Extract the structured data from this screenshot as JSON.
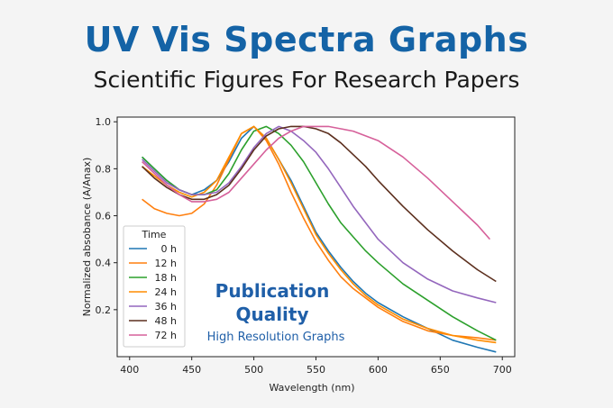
{
  "header": {
    "title": "UV Vis Spectra Graphs",
    "subtitle": "Scientific Figures For Research Papers"
  },
  "overlay": {
    "line1": "Publication",
    "line2": "Quality",
    "line3": "High Resolution Graphs"
  },
  "chart_data": {
    "type": "line",
    "xlabel": "Wavelength (nm)",
    "ylabel": "Normalized absobance (A/Anax)",
    "xlim": [
      400,
      700
    ],
    "ylim": [
      0.0,
      1.0
    ],
    "xticks": [
      400,
      450,
      500,
      550,
      600,
      650,
      700
    ],
    "yticks": [
      0.2,
      0.4,
      0.6,
      0.8,
      1.0
    ],
    "ytick_labels": [
      "0.2",
      "0.4",
      "0.6",
      "0.8",
      "1.0"
    ],
    "grid": false,
    "legend": {
      "title": "Time",
      "placement": "lower-left"
    },
    "series": [
      {
        "name": "0 h",
        "color": "#1f77b4",
        "x": [
          410,
          420,
          430,
          440,
          450,
          460,
          470,
          480,
          490,
          500,
          510,
          520,
          530,
          540,
          550,
          560,
          570,
          580,
          590,
          600,
          620,
          640,
          660,
          680,
          695
        ],
        "y": [
          0.85,
          0.8,
          0.75,
          0.71,
          0.69,
          0.71,
          0.75,
          0.83,
          0.93,
          0.98,
          0.93,
          0.84,
          0.75,
          0.64,
          0.53,
          0.45,
          0.38,
          0.32,
          0.27,
          0.23,
          0.17,
          0.12,
          0.07,
          0.04,
          0.02
        ]
      },
      {
        "name": "12 h",
        "color": "#ff7f0e",
        "x": [
          410,
          420,
          430,
          440,
          450,
          460,
          470,
          480,
          490,
          500,
          510,
          520,
          530,
          540,
          550,
          560,
          570,
          580,
          590,
          600,
          620,
          640,
          660,
          680,
          695
        ],
        "y": [
          0.67,
          0.63,
          0.61,
          0.6,
          0.61,
          0.65,
          0.73,
          0.84,
          0.95,
          0.98,
          0.92,
          0.82,
          0.7,
          0.59,
          0.49,
          0.41,
          0.34,
          0.29,
          0.25,
          0.21,
          0.15,
          0.11,
          0.09,
          0.08,
          0.07
        ]
      },
      {
        "name": "18 h",
        "color": "#2ca02c",
        "x": [
          410,
          420,
          430,
          440,
          450,
          460,
          470,
          480,
          490,
          500,
          510,
          520,
          530,
          540,
          550,
          560,
          570,
          580,
          590,
          600,
          620,
          640,
          660,
          680,
          695
        ],
        "y": [
          0.85,
          0.8,
          0.75,
          0.71,
          0.69,
          0.69,
          0.71,
          0.78,
          0.88,
          0.96,
          0.98,
          0.95,
          0.9,
          0.83,
          0.74,
          0.65,
          0.57,
          0.51,
          0.45,
          0.4,
          0.31,
          0.24,
          0.17,
          0.11,
          0.07
        ]
      },
      {
        "name": "24 h",
        "color": "#ff8c00",
        "x": [
          410,
          420,
          430,
          440,
          450,
          460,
          470,
          480,
          490,
          500,
          510,
          520,
          530,
          540,
          550,
          560,
          570,
          580,
          590,
          600,
          620,
          640,
          660,
          680,
          695
        ],
        "y": [
          0.81,
          0.77,
          0.73,
          0.7,
          0.68,
          0.7,
          0.75,
          0.85,
          0.95,
          0.98,
          0.93,
          0.84,
          0.74,
          0.63,
          0.52,
          0.44,
          0.37,
          0.31,
          0.26,
          0.22,
          0.16,
          0.12,
          0.09,
          0.07,
          0.06
        ]
      },
      {
        "name": "36 h",
        "color": "#9467bd",
        "x": [
          410,
          420,
          430,
          440,
          450,
          460,
          470,
          480,
          490,
          500,
          510,
          520,
          530,
          540,
          550,
          560,
          570,
          580,
          590,
          600,
          620,
          640,
          660,
          680,
          695
        ],
        "y": [
          0.84,
          0.79,
          0.74,
          0.71,
          0.69,
          0.69,
          0.7,
          0.74,
          0.81,
          0.89,
          0.95,
          0.98,
          0.96,
          0.92,
          0.87,
          0.8,
          0.72,
          0.64,
          0.57,
          0.5,
          0.4,
          0.33,
          0.28,
          0.25,
          0.23
        ]
      },
      {
        "name": "48 h",
        "color": "#5c2f1e",
        "x": [
          410,
          420,
          430,
          440,
          450,
          460,
          470,
          480,
          490,
          500,
          510,
          520,
          530,
          540,
          550,
          560,
          570,
          580,
          590,
          600,
          620,
          640,
          660,
          680,
          695
        ],
        "y": [
          0.81,
          0.76,
          0.72,
          0.69,
          0.67,
          0.67,
          0.69,
          0.73,
          0.8,
          0.88,
          0.94,
          0.97,
          0.98,
          0.98,
          0.97,
          0.95,
          0.91,
          0.86,
          0.81,
          0.75,
          0.64,
          0.54,
          0.45,
          0.37,
          0.32
        ]
      },
      {
        "name": "72 h",
        "color": "#d6609a",
        "x": [
          410,
          420,
          430,
          440,
          450,
          460,
          470,
          480,
          490,
          500,
          510,
          520,
          530,
          540,
          550,
          560,
          570,
          580,
          590,
          600,
          620,
          640,
          660,
          680,
          690
        ],
        "y": [
          0.83,
          0.78,
          0.73,
          0.69,
          0.66,
          0.66,
          0.67,
          0.7,
          0.76,
          0.82,
          0.88,
          0.93,
          0.96,
          0.98,
          0.98,
          0.98,
          0.97,
          0.96,
          0.94,
          0.92,
          0.85,
          0.76,
          0.66,
          0.56,
          0.5
        ]
      }
    ]
  }
}
